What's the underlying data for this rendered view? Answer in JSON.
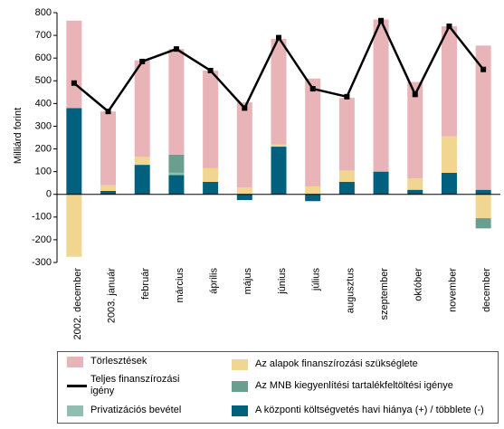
{
  "chart_data": {
    "type": "bar",
    "ylabel": "Milliárd forint",
    "categories": [
      "2002. december",
      "2003. január",
      "február",
      "március",
      "április",
      "május",
      "június",
      "július",
      "augusztus",
      "szeptember",
      "október",
      "november",
      "december"
    ],
    "series": [
      {
        "name": "A központi költségvetés havi hiánya (+) / többlete (-)",
        "color": "#00607e",
        "values": [
          380,
          15,
          130,
          85,
          55,
          -25,
          210,
          -30,
          55,
          100,
          20,
          95,
          20
        ]
      },
      {
        "name": "Privatizációs bevétel",
        "color": "#8fbfb0",
        "values": [
          0,
          0,
          0,
          10,
          0,
          0,
          0,
          0,
          0,
          0,
          0,
          0,
          0
        ]
      },
      {
        "name": "Az MNB kiegyenlítési tartalékfeltöltési igénye",
        "color": "#6a9e8e",
        "values": [
          0,
          0,
          0,
          80,
          0,
          0,
          0,
          0,
          0,
          0,
          0,
          0,
          -45
        ]
      },
      {
        "name": "Az alapok finanszírozási szükséglete",
        "color": "#f0d690",
        "values": [
          -275,
          25,
          35,
          0,
          60,
          30,
          10,
          35,
          50,
          0,
          50,
          160,
          -105
        ]
      },
      {
        "name": "Törlesztések",
        "color": "#e8b4b8",
        "values": [
          385,
          325,
          425,
          465,
          430,
          375,
          465,
          475,
          320,
          670,
          425,
          485,
          635
        ]
      },
      {
        "name": "Teljes finanszírozási igény",
        "color": "#000000",
        "type": "line",
        "values": [
          490,
          365,
          585,
          640,
          545,
          380,
          690,
          465,
          430,
          765,
          440,
          740,
          550
        ]
      }
    ],
    "ylim": [
      -300,
      800
    ],
    "yticks": [
      -300,
      -200,
      -100,
      0,
      100,
      200,
      300,
      400,
      500,
      600,
      700,
      800
    ]
  }
}
